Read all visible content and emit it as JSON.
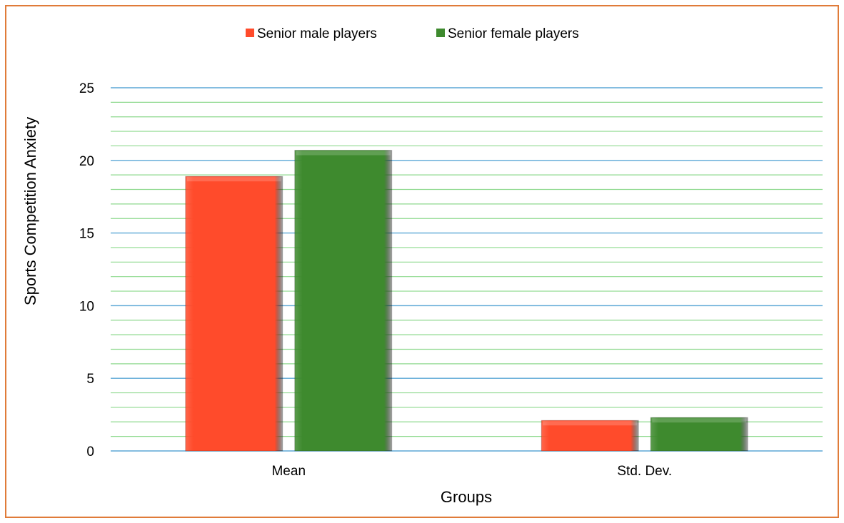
{
  "chart_data": {
    "type": "bar",
    "categories": [
      "Mean",
      "Std. Dev."
    ],
    "series": [
      {
        "name": "Senior male players",
        "values": [
          18.9,
          2.1
        ],
        "color": "#FF4B2B"
      },
      {
        "name": "Senior female players",
        "values": [
          20.7,
          2.3
        ],
        "color": "#3E8A2E"
      }
    ],
    "title": "",
    "xlabel": "Groups",
    "ylabel": "Sports Competition Anxiety",
    "ylim": [
      0,
      25
    ],
    "yticks": [
      "0",
      "5",
      "10",
      "15",
      "20",
      "25"
    ],
    "major_step": 5,
    "minor_step": 1,
    "grid": true,
    "legend_position": "top-center",
    "colors": {
      "frame": "#E07B39",
      "major_grid": "#5BA7D6",
      "minor_grid": "#8ED98E"
    }
  }
}
